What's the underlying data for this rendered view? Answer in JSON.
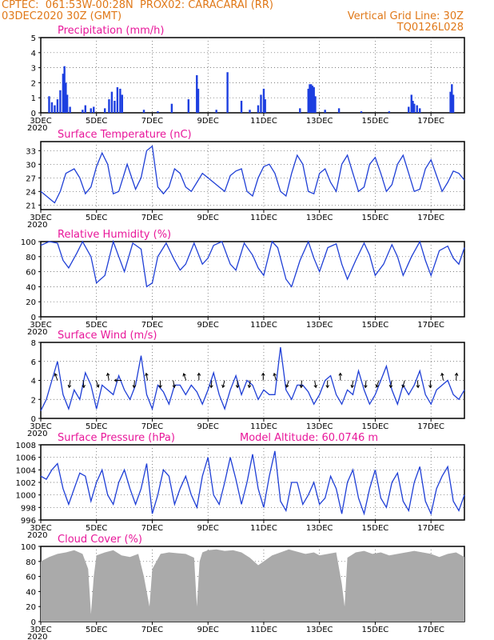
{
  "header": {
    "left_line1": "CPTEC:  061:53W-00:28N  PROX02: CARACARAI (RR)",
    "left_line2": "03DEC2020 30Z (GMT)",
    "right_line2": "Vertical Grid Line: 30Z",
    "right_line3": "TQ0126L028"
  },
  "colors": {
    "header": "#e07818",
    "title": "#e8179a",
    "line": "#1f3fd6",
    "bar": "#1d3fe0",
    "cloud": "#aaaaaa",
    "grid": "#555555"
  },
  "x_axis": {
    "tick_labels": [
      "3DEC",
      "5DEC",
      "7DEC",
      "9DEC",
      "11DEC",
      "13DEC",
      "15DEC",
      "17DEC"
    ],
    "year_label": "2020",
    "range_days": [
      3,
      18.2
    ]
  },
  "chart_data": [
    {
      "type": "bar",
      "title": "Precipitation (mm/h)",
      "ylim": [
        0,
        5
      ],
      "yticks": [
        "0",
        "1",
        "2",
        "3",
        "4",
        "5"
      ],
      "events": [
        [
          3.3,
          1.1
        ],
        [
          3.4,
          0.7
        ],
        [
          3.5,
          0.5
        ],
        [
          3.6,
          0.9
        ],
        [
          3.7,
          1.5
        ],
        [
          3.8,
          2.6
        ],
        [
          3.85,
          3.1
        ],
        [
          3.9,
          2.0
        ],
        [
          3.95,
          1.2
        ],
        [
          4.05,
          0.4
        ],
        [
          4.5,
          0.2
        ],
        [
          4.6,
          0.5
        ],
        [
          4.8,
          0.3
        ],
        [
          4.9,
          0.4
        ],
        [
          5.3,
          0.3
        ],
        [
          5.45,
          0.9
        ],
        [
          5.55,
          1.4
        ],
        [
          5.65,
          0.8
        ],
        [
          5.75,
          1.7
        ],
        [
          5.85,
          1.6
        ],
        [
          5.92,
          1.2
        ],
        [
          6.7,
          0.2
        ],
        [
          7.2,
          0.1
        ],
        [
          7.7,
          0.6
        ],
        [
          8.3,
          0.9
        ],
        [
          8.6,
          2.5
        ],
        [
          8.65,
          1.6
        ],
        [
          9.3,
          0.2
        ],
        [
          9.7,
          2.7
        ],
        [
          10.2,
          0.8
        ],
        [
          10.5,
          0.2
        ],
        [
          10.8,
          0.5
        ],
        [
          10.9,
          1.2
        ],
        [
          11.0,
          1.6
        ],
        [
          11.05,
          0.9
        ],
        [
          12.3,
          0.3
        ],
        [
          12.6,
          1.6
        ],
        [
          12.65,
          1.9
        ],
        [
          12.7,
          1.9
        ],
        [
          12.75,
          1.8
        ],
        [
          12.8,
          1.7
        ],
        [
          12.85,
          1.1
        ],
        [
          13.2,
          0.2
        ],
        [
          13.7,
          0.3
        ],
        [
          14.5,
          0.1
        ],
        [
          15.5,
          0.1
        ],
        [
          16.2,
          0.4
        ],
        [
          16.3,
          1.2
        ],
        [
          16.35,
          0.8
        ],
        [
          16.4,
          0.6
        ],
        [
          16.5,
          0.5
        ],
        [
          16.6,
          0.3
        ],
        [
          17.7,
          1.4
        ],
        [
          17.75,
          1.9
        ],
        [
          17.8,
          1.2
        ]
      ]
    },
    {
      "type": "line",
      "title": "Surface Temperature (nC)",
      "ylim": [
        20,
        35
      ],
      "yticks": [
        "21",
        "24",
        "27",
        "30",
        "33"
      ],
      "x": [
        3.0,
        3.2,
        3.4,
        3.5,
        3.7,
        3.9,
        4.2,
        4.4,
        4.6,
        4.8,
        5.0,
        5.2,
        5.4,
        5.6,
        5.8,
        6.1,
        6.4,
        6.6,
        6.8,
        7.0,
        7.2,
        7.4,
        7.6,
        7.8,
        8.0,
        8.2,
        8.4,
        8.6,
        8.8,
        9.0,
        9.2,
        9.4,
        9.6,
        9.8,
        10.0,
        10.2,
        10.4,
        10.6,
        10.8,
        11.0,
        11.2,
        11.4,
        11.6,
        11.8,
        12.0,
        12.2,
        12.4,
        12.6,
        12.8,
        13.0,
        13.2,
        13.4,
        13.6,
        13.8,
        14.0,
        14.2,
        14.4,
        14.6,
        14.8,
        15.0,
        15.2,
        15.4,
        15.6,
        15.8,
        16.0,
        16.2,
        16.4,
        16.6,
        16.8,
        17.0,
        17.2,
        17.4,
        17.6,
        17.8,
        18.0,
        18.2
      ],
      "y": [
        24,
        23,
        22,
        21.5,
        24,
        28,
        29,
        27,
        23.5,
        25,
        29.5,
        32.5,
        30,
        23.5,
        24,
        30,
        24.5,
        27,
        33,
        34,
        25,
        23.5,
        25,
        29,
        28,
        25,
        24,
        26,
        28,
        27,
        26,
        25,
        24,
        27.5,
        28.5,
        29,
        24,
        23,
        27,
        29.5,
        30,
        28,
        24,
        23,
        28,
        32,
        30,
        24,
        23.5,
        28,
        29,
        26,
        24,
        30,
        32,
        28,
        24,
        25,
        30,
        31.5,
        28,
        24,
        25.5,
        30,
        32,
        28,
        24,
        24.5,
        29,
        31,
        27.5,
        24,
        26,
        28.5,
        28,
        26.5
      ]
    },
    {
      "type": "line",
      "title": "Relative Humidity (%)",
      "ylim": [
        0,
        100
      ],
      "yticks": [
        "0",
        "20",
        "40",
        "60",
        "80",
        "100"
      ],
      "x": [
        3.0,
        3.3,
        3.6,
        3.8,
        4.0,
        4.3,
        4.5,
        4.8,
        5.0,
        5.3,
        5.6,
        5.8,
        6.0,
        6.3,
        6.6,
        6.8,
        7.0,
        7.2,
        7.5,
        7.8,
        8.0,
        8.2,
        8.5,
        8.8,
        9.0,
        9.2,
        9.5,
        9.8,
        10.0,
        10.3,
        10.6,
        10.8,
        11.0,
        11.3,
        11.5,
        11.8,
        12.0,
        12.3,
        12.6,
        12.8,
        13.0,
        13.3,
        13.6,
        13.8,
        14.0,
        14.3,
        14.6,
        14.8,
        15.0,
        15.3,
        15.6,
        15.8,
        16.0,
        16.3,
        16.6,
        16.8,
        17.0,
        17.3,
        17.6,
        17.8,
        18.0,
        18.2
      ],
      "y": [
        95,
        100,
        98,
        75,
        65,
        85,
        100,
        80,
        45,
        55,
        100,
        80,
        60,
        98,
        90,
        40,
        45,
        80,
        98,
        75,
        62,
        70,
        98,
        70,
        78,
        95,
        100,
        70,
        62,
        98,
        82,
        65,
        55,
        100,
        92,
        50,
        40,
        75,
        100,
        78,
        60,
        92,
        97,
        70,
        50,
        75,
        98,
        82,
        55,
        70,
        96,
        80,
        55,
        80,
        100,
        75,
        55,
        88,
        94,
        78,
        70,
        92
      ]
    },
    {
      "type": "line",
      "title": "Surface Wind (m/s)",
      "ylim": [
        0,
        8
      ],
      "yticks": [
        "0",
        "2",
        "4",
        "6",
        "8"
      ],
      "x": [
        3.0,
        3.2,
        3.4,
        3.6,
        3.8,
        4.0,
        4.2,
        4.4,
        4.6,
        4.8,
        5.0,
        5.2,
        5.4,
        5.6,
        5.8,
        6.0,
        6.2,
        6.4,
        6.6,
        6.8,
        7.0,
        7.2,
        7.4,
        7.6,
        7.8,
        8.0,
        8.2,
        8.4,
        8.6,
        8.8,
        9.0,
        9.2,
        9.4,
        9.6,
        9.8,
        10.0,
        10.2,
        10.4,
        10.6,
        10.8,
        11.0,
        11.2,
        11.4,
        11.6,
        11.8,
        12.0,
        12.2,
        12.4,
        12.6,
        12.8,
        13.0,
        13.2,
        13.4,
        13.6,
        13.8,
        14.0,
        14.2,
        14.4,
        14.6,
        14.8,
        15.0,
        15.2,
        15.4,
        15.6,
        15.8,
        16.0,
        16.2,
        16.4,
        16.6,
        16.8,
        17.0,
        17.2,
        17.4,
        17.6,
        17.8,
        18.0,
        18.2
      ],
      "y": [
        0.8,
        2.0,
        4.0,
        6.0,
        2.5,
        1.0,
        3.0,
        2.0,
        4.8,
        3.5,
        1.0,
        3.5,
        3.0,
        2.5,
        4.5,
        3.0,
        2.0,
        3.5,
        6.6,
        2.5,
        1.0,
        3.5,
        2.8,
        1.5,
        3.5,
        3.5,
        2.5,
        3.5,
        2.8,
        1.5,
        3.0,
        4.8,
        2.5,
        1.0,
        3.0,
        4.5,
        2.5,
        4.0,
        3.5,
        2.0,
        3.0,
        2.5,
        2.5,
        7.5,
        3.0,
        2.0,
        3.5,
        3.5,
        2.8,
        1.5,
        2.5,
        4.0,
        4.5,
        2.5,
        1.5,
        3.0,
        2.5,
        5.0,
        3.0,
        1.5,
        2.5,
        4.0,
        5.5,
        3.0,
        1.5,
        3.5,
        2.5,
        3.5,
        5.0,
        2.5,
        1.5,
        3.0,
        3.5,
        4.0,
        2.5,
        2.0,
        3.0
      ],
      "arrow_angles_deg": [
        250,
        100,
        85,
        70,
        260,
        180,
        95,
        260,
        90,
        80,
        250,
        270,
        95,
        105,
        90,
        100,
        270,
        255,
        110,
        95,
        80,
        90,
        270,
        100,
        95,
        110,
        100,
        105,
        85,
        90,
        260,
        275
      ]
    },
    {
      "type": "line",
      "title": "Surface Pressure (hPa)",
      "annotation": "Model Altitude: 60.0746 m",
      "ylim": [
        996,
        1008
      ],
      "yticks": [
        "996",
        "998",
        "1000",
        "1002",
        "1004",
        "1006",
        "1008"
      ],
      "x": [
        3.0,
        3.2,
        3.4,
        3.6,
        3.8,
        4.0,
        4.2,
        4.4,
        4.6,
        4.8,
        5.0,
        5.2,
        5.4,
        5.6,
        5.8,
        6.0,
        6.2,
        6.4,
        6.6,
        6.8,
        7.0,
        7.2,
        7.4,
        7.6,
        7.8,
        8.0,
        8.2,
        8.4,
        8.6,
        8.8,
        9.0,
        9.2,
        9.4,
        9.6,
        9.8,
        10.0,
        10.2,
        10.4,
        10.6,
        10.8,
        11.0,
        11.2,
        11.4,
        11.6,
        11.8,
        12.0,
        12.2,
        12.4,
        12.6,
        12.8,
        13.0,
        13.2,
        13.4,
        13.6,
        13.8,
        14.0,
        14.2,
        14.4,
        14.6,
        14.8,
        15.0,
        15.2,
        15.4,
        15.6,
        15.8,
        16.0,
        16.2,
        16.4,
        16.6,
        16.8,
        17.0,
        17.2,
        17.4,
        17.6,
        17.8,
        18.0,
        18.2
      ],
      "y": [
        1003,
        1002.5,
        1004,
        1005,
        1001,
        998.5,
        1001,
        1003.5,
        1003,
        999,
        1002,
        1004,
        1000,
        998.5,
        1002,
        1004,
        1001,
        998.5,
        1001,
        1005,
        997,
        1000,
        1004,
        1003,
        998.5,
        1001,
        1003,
        1000,
        998,
        1003,
        1006,
        1000,
        998.5,
        1002,
        1006,
        1002.5,
        998.5,
        1002,
        1006.5,
        1001,
        998,
        1003,
        1007,
        999,
        997.5,
        1002,
        1002,
        998.5,
        1000,
        1002,
        998.5,
        999.5,
        1003,
        1001,
        997,
        1002,
        1004,
        999.5,
        997,
        1001,
        1004,
        999.5,
        998,
        1002,
        1003.5,
        999,
        997.5,
        1002,
        1004.5,
        999,
        997,
        1001,
        1003,
        1004.5,
        999,
        997.5,
        1000
      ]
    },
    {
      "type": "area",
      "title": "Cloud Cover (%)",
      "ylim": [
        0,
        100
      ],
      "yticks": [
        "0",
        "20",
        "40",
        "60",
        "80",
        "100"
      ],
      "x": [
        3.0,
        3.3,
        3.6,
        3.9,
        4.2,
        4.5,
        4.7,
        4.8,
        4.9,
        5.0,
        5.3,
        5.6,
        5.9,
        6.2,
        6.5,
        6.7,
        6.9,
        7.0,
        7.3,
        7.6,
        7.9,
        8.2,
        8.5,
        8.6,
        8.7,
        8.8,
        9.0,
        9.3,
        9.6,
        9.9,
        10.2,
        10.5,
        10.8,
        11.0,
        11.3,
        11.6,
        11.9,
        12.2,
        12.5,
        12.8,
        13.0,
        13.3,
        13.6,
        13.8,
        13.9,
        14.0,
        14.3,
        14.6,
        14.9,
        15.2,
        15.5,
        15.8,
        16.1,
        16.4,
        16.7,
        17.0,
        17.3,
        17.6,
        17.9,
        18.2
      ],
      "y": [
        80,
        86,
        90,
        92,
        95,
        90,
        70,
        10,
        60,
        88,
        92,
        95,
        88,
        86,
        90,
        60,
        20,
        70,
        90,
        92,
        91,
        90,
        85,
        20,
        80,
        92,
        95,
        96,
        94,
        95,
        92,
        85,
        75,
        80,
        88,
        92,
        96,
        93,
        90,
        92,
        88,
        90,
        92,
        50,
        20,
        85,
        92,
        94,
        90,
        92,
        88,
        90,
        92,
        94,
        92,
        90,
        86,
        90,
        92,
        86
      ]
    }
  ]
}
